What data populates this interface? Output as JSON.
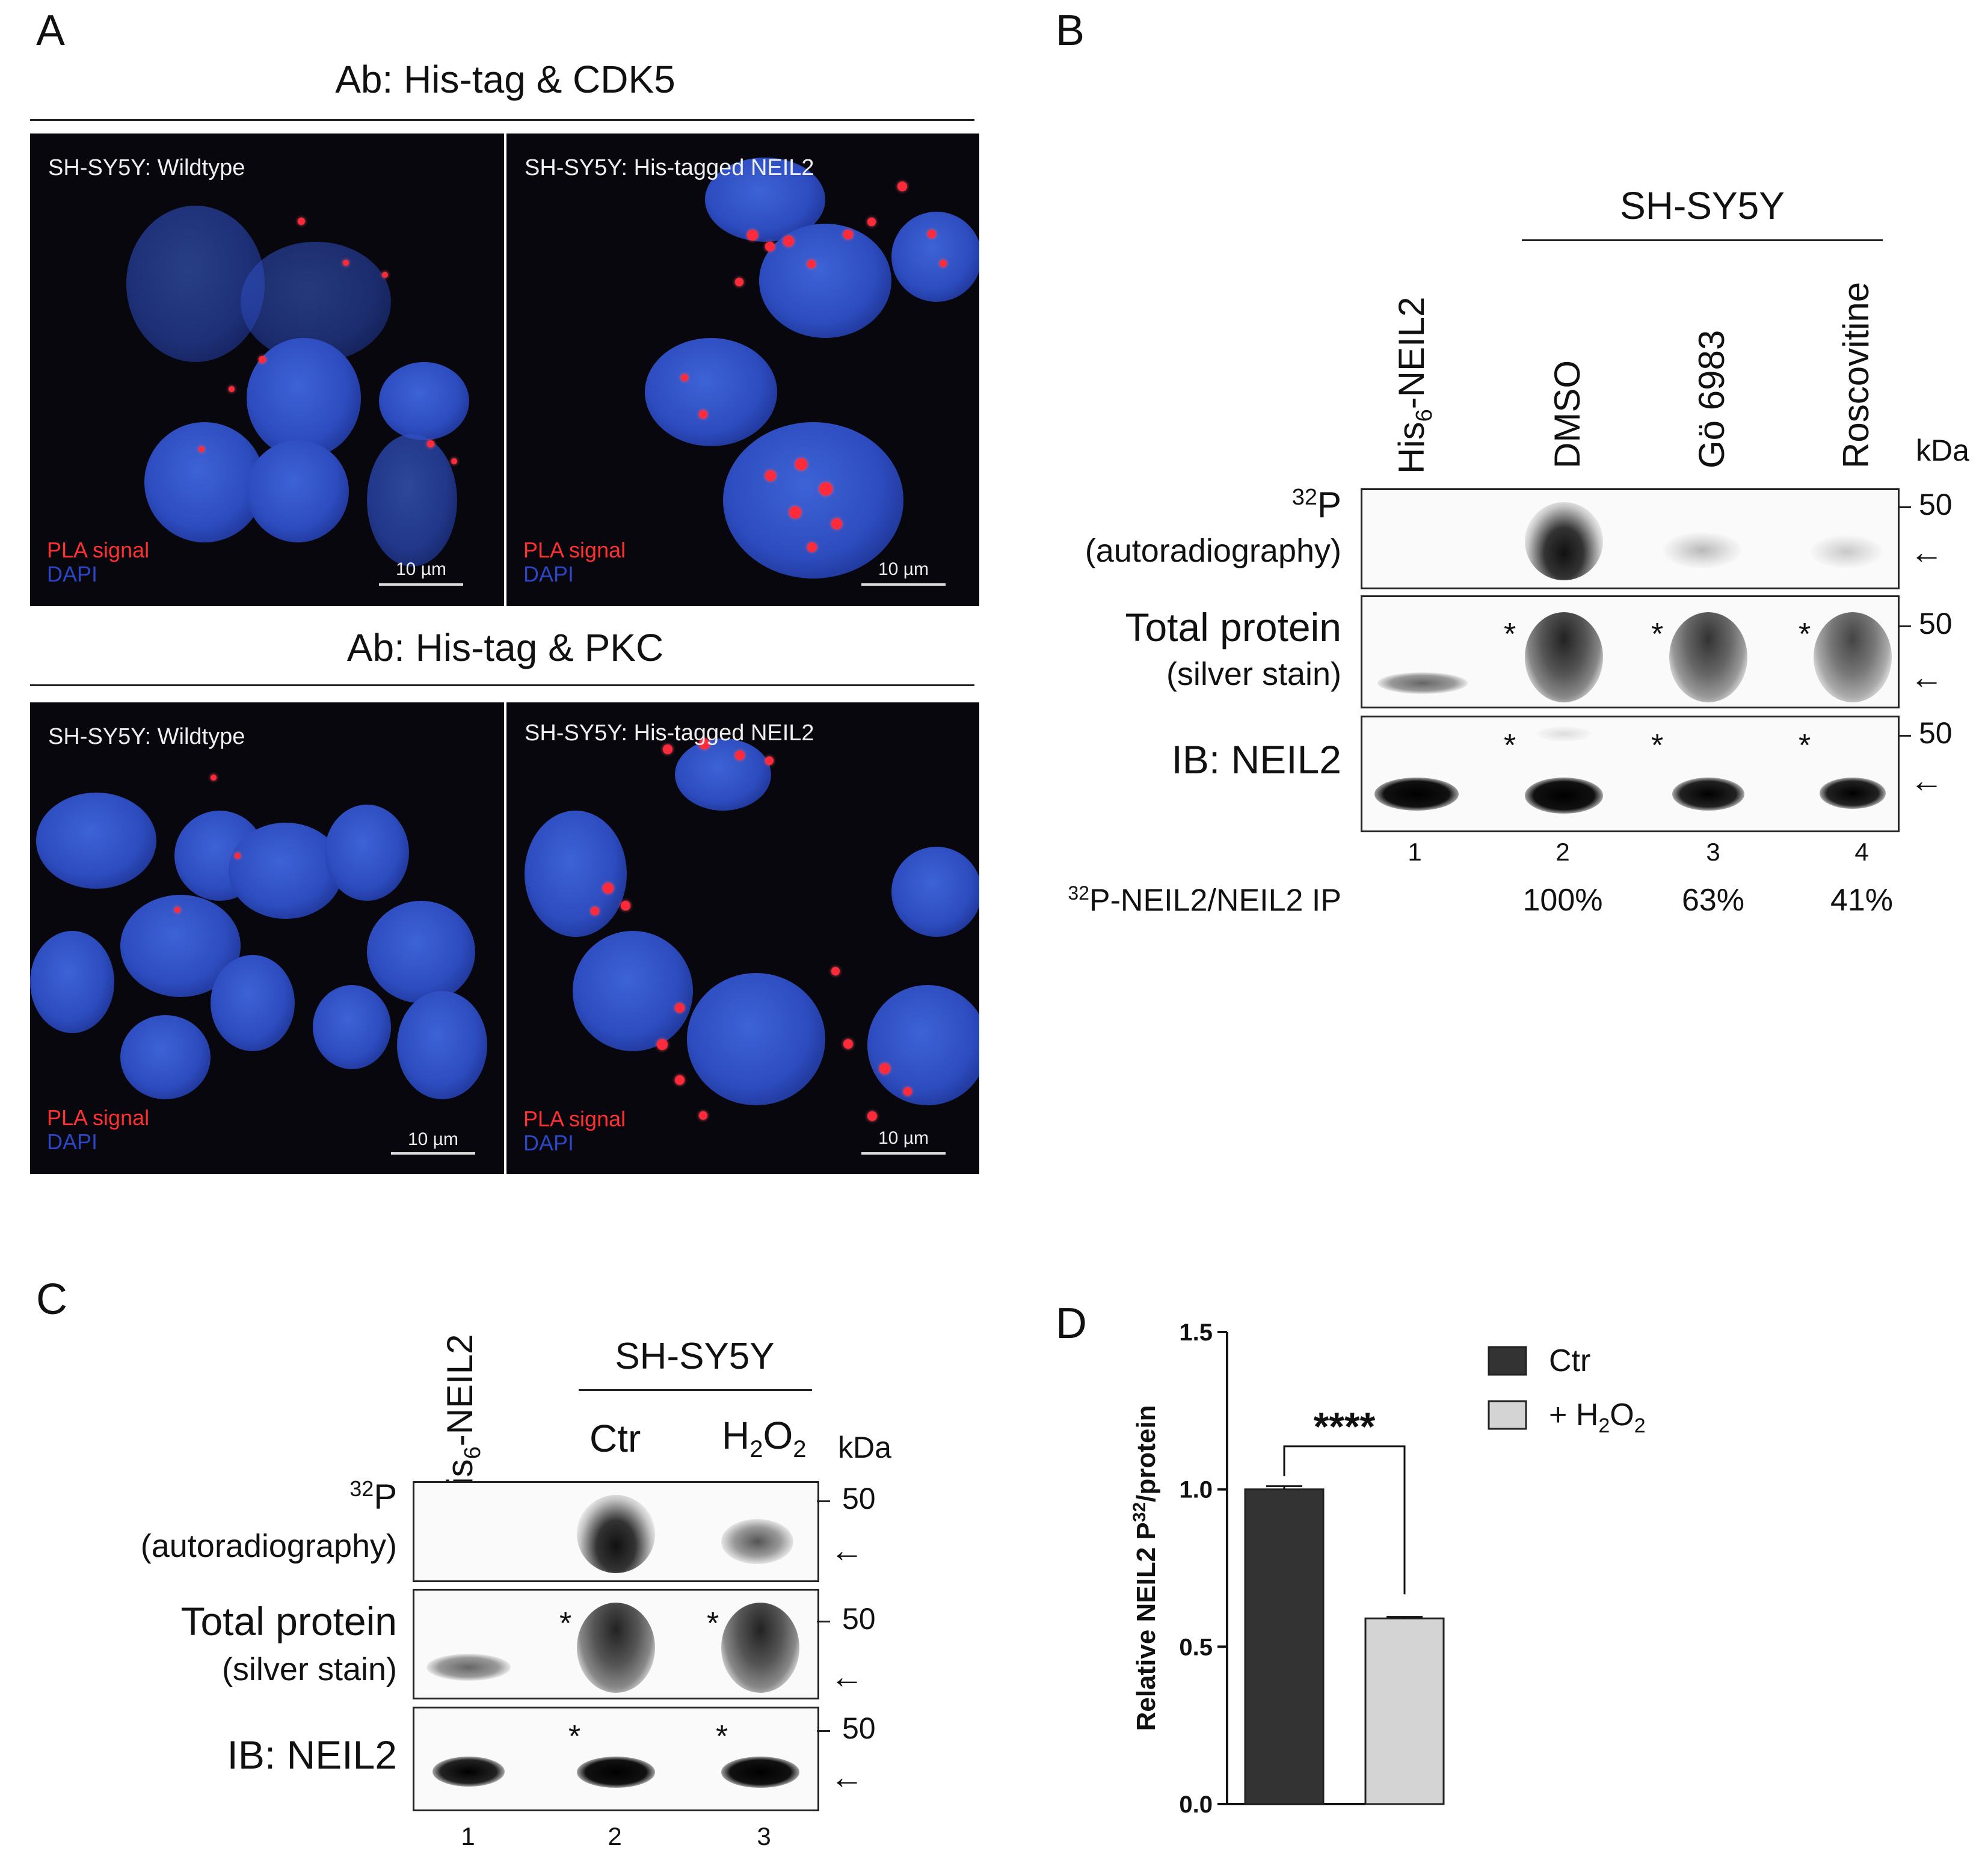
{
  "panels": {
    "a": "A",
    "b": "B",
    "c": "C",
    "d": "D"
  },
  "panel_a": {
    "top_title": "Ab: His-tag & CDK5",
    "bottom_title": "Ab: His-tag & PKC",
    "images": [
      {
        "label": "SH-SY5Y:  Wildtype",
        "pla": "PLA signal",
        "dapi": "DAPI",
        "scale": "10 µm"
      },
      {
        "label": "SH-SY5Y: His-tagged NEIL2",
        "pla": "PLA signal",
        "dapi": "DAPI",
        "scale": "10 µm"
      },
      {
        "label": "SH-SY5Y:  Wildtype",
        "pla": "PLA signal",
        "dapi": "DAPI",
        "scale": "10 µm"
      },
      {
        "label": "SH-SY5Y: His-tagged NEIL2",
        "pla": "PLA signal",
        "dapi": "DAPI",
        "scale": "10 µm"
      }
    ]
  },
  "panel_b": {
    "group_label": "SH-SY5Y",
    "lane_headers": [
      "His",
      "6",
      "-NEIL2",
      "DMSO",
      "Gö 6983",
      "Roscovitine"
    ],
    "kda": "kDa",
    "rows": [
      {
        "label_sup": "32",
        "label_main": "P",
        "label_sub": "(autoradiography)"
      },
      {
        "label_main": "Total protein",
        "label_sub": "(silver stain)"
      },
      {
        "label_main": "IB: NEIL2"
      }
    ],
    "marker": "50",
    "arrow": "←",
    "star": "*",
    "lane_numbers": [
      "1",
      "2",
      "3",
      "4"
    ],
    "ratio_sup": "32",
    "ratio_label": "P-NEIL2/NEIL2 IP",
    "ratios": [
      "100%",
      "63%",
      "41%"
    ]
  },
  "panel_c": {
    "group_label": "SH-SY5Y",
    "lane_headers": [
      "His",
      "6",
      "-NEIL2",
      "Ctr",
      "H",
      "2",
      "O",
      "2"
    ],
    "kda": "kDa",
    "rows": [
      {
        "label_sup": "32",
        "label_main": "P",
        "label_sub": "(autoradiography)"
      },
      {
        "label_main": "Total protein",
        "label_sub": "(silver stain)"
      },
      {
        "label_main": "IB: NEIL2"
      }
    ],
    "marker": "50",
    "arrow": "←",
    "star": "*",
    "lane_numbers": [
      "1",
      "2",
      "3"
    ]
  },
  "chart_data": {
    "type": "bar",
    "categories": [
      "Ctr",
      "+ H2O2"
    ],
    "values": [
      1.0,
      0.59
    ],
    "errors": [
      0.01,
      0.005
    ],
    "colors": [
      "#333333",
      "#d4d4d4"
    ],
    "ylabel_parts": [
      "Relative NEIL2 P",
      "32",
      "/protein"
    ],
    "ylim": [
      0.0,
      1.5
    ],
    "yticks": [
      "0.0",
      "0.5",
      "1.0",
      "1.5"
    ],
    "legend": [
      {
        "text": "Ctr"
      },
      {
        "text": "+ H",
        "sub": "2",
        "text2": "O",
        "sub2": "2"
      }
    ],
    "significance": "****"
  }
}
